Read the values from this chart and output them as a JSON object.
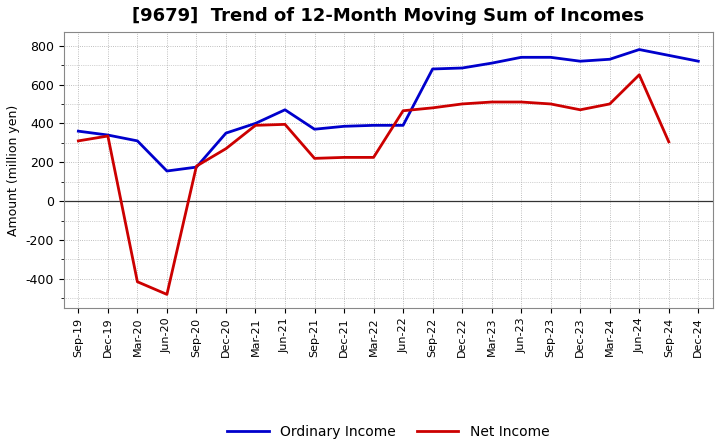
{
  "title": "[9679]  Trend of 12-Month Moving Sum of Incomes",
  "ylabel": "Amount (million yen)",
  "x_labels": [
    "Sep-19",
    "Dec-19",
    "Mar-20",
    "Jun-20",
    "Sep-20",
    "Dec-20",
    "Mar-21",
    "Jun-21",
    "Sep-21",
    "Dec-21",
    "Mar-22",
    "Jun-22",
    "Sep-22",
    "Dec-22",
    "Mar-23",
    "Jun-23",
    "Sep-23",
    "Dec-23",
    "Mar-24",
    "Jun-24",
    "Sep-24",
    "Dec-24"
  ],
  "ordinary_income": [
    360,
    340,
    310,
    155,
    175,
    350,
    400,
    470,
    370,
    385,
    390,
    390,
    680,
    685,
    710,
    740,
    740,
    720,
    730,
    780,
    750,
    720
  ],
  "net_income": [
    310,
    335,
    -415,
    -480,
    180,
    270,
    390,
    395,
    220,
    225,
    225,
    465,
    480,
    500,
    510,
    510,
    500,
    470,
    500,
    650,
    305,
    null
  ],
  "ordinary_color": "#0000cc",
  "net_color": "#cc0000",
  "ylim": [
    -550,
    870
  ],
  "yticks": [
    -400,
    -200,
    0,
    200,
    400,
    600,
    800
  ],
  "bg_color": "#ffffff",
  "plot_bg_color": "#ffffff",
  "grid_color": "#aaaaaa",
  "title_fontsize": 13,
  "axis_fontsize": 9,
  "tick_fontsize": 8,
  "legend_fontsize": 10,
  "line_width": 2.0
}
